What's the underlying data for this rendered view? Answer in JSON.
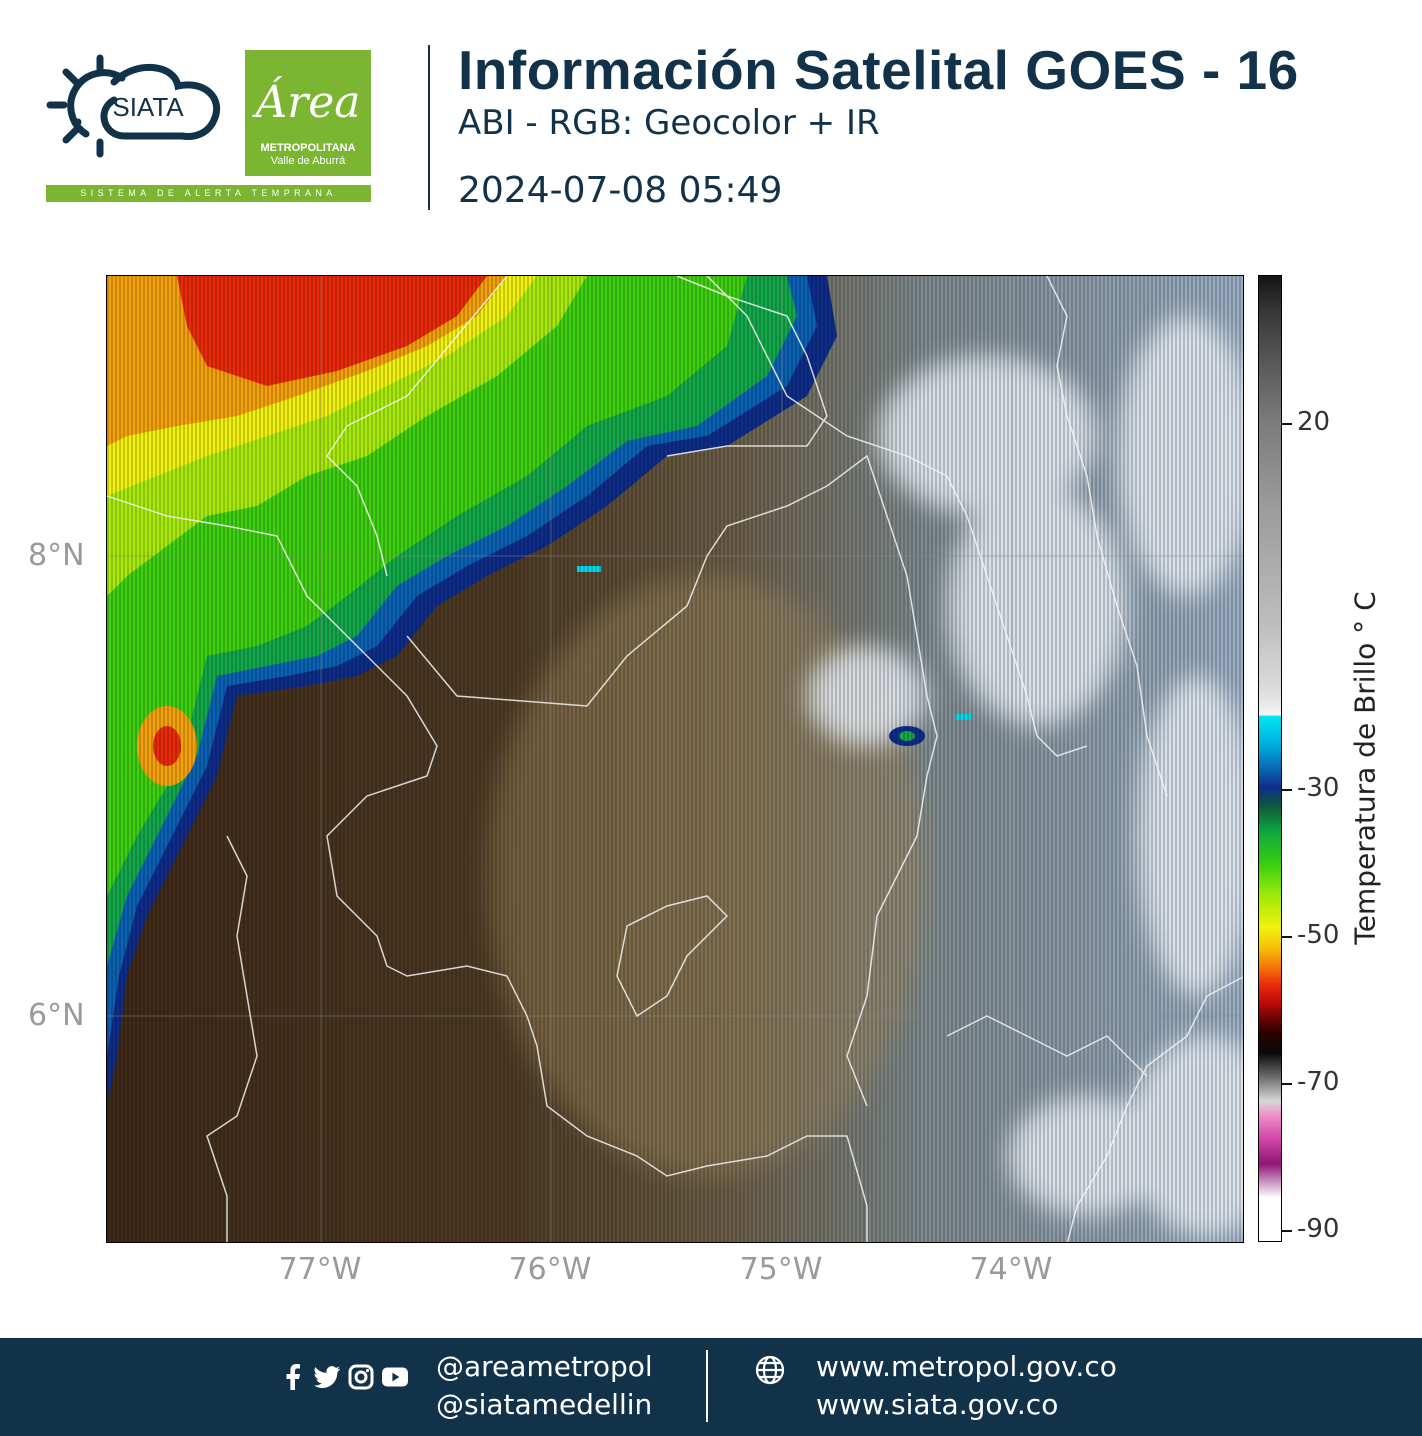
{
  "header": {
    "siata_logo_text": "SIATA",
    "area_logo_script": "Área",
    "area_logo_line1": "METROPOLITANA",
    "area_logo_line2": "Valle de Aburrá",
    "alert_strip": "SISTEMA DE ALERTA TEMPRANA",
    "title": "Información Satelital GOES - 16",
    "subtitle": "ABI - RGB: Geocolor + IR",
    "timestamp": "2024-07-08 05:49"
  },
  "map": {
    "lat_labels": [
      "8°N",
      "6°N"
    ],
    "lon_labels": [
      "77°W",
      "76°W",
      "75°W",
      "74°W"
    ],
    "region": "Northwestern Colombia (Antioquia)"
  },
  "colorbar": {
    "title": "Temperatura de Brillo  ° C",
    "tick_labels": [
      "20",
      "-30",
      "-50",
      "-70",
      "-90"
    ]
  },
  "footer": {
    "social_icons": [
      "facebook-icon",
      "twitter-icon",
      "instagram-icon",
      "youtube-icon"
    ],
    "handle_1": "@areametropol",
    "handle_2": "@siatamedellin",
    "site_1": "www.metropol.gov.co",
    "site_2": "www.siata.gov.co"
  },
  "colors": {
    "navy": "#12324a",
    "green": "#7bb531"
  }
}
